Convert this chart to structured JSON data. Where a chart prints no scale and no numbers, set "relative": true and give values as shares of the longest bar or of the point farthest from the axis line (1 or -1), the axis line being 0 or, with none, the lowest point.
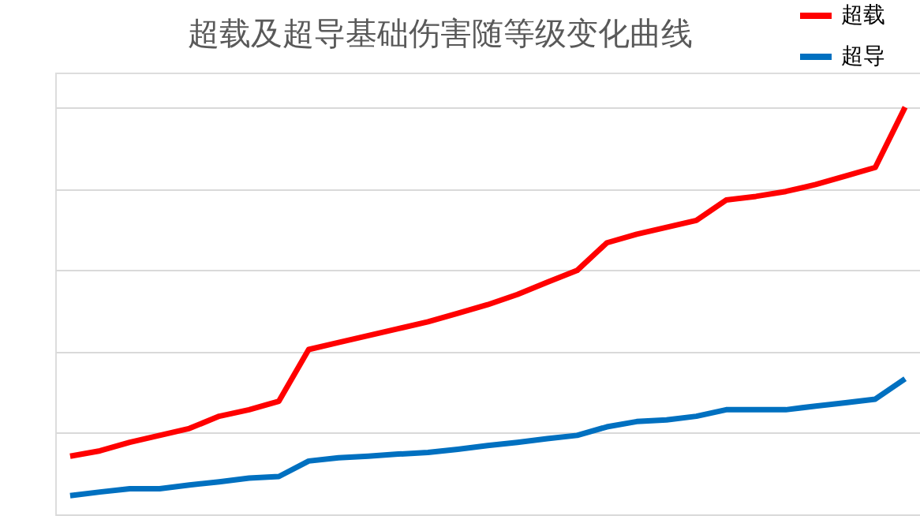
{
  "chart_data": {
    "type": "line",
    "title": "超载及超导基础伤害随等级变化曲线",
    "relative": true,
    "grid": "y",
    "legend": "top right",
    "marker": "none",
    "line_style": "solid",
    "tick_labels": false,
    "categories": [
      null,
      null,
      null,
      null,
      null,
      null,
      null,
      null,
      null,
      null,
      null,
      null,
      null,
      null,
      null,
      null,
      null,
      null,
      null,
      null,
      null,
      null,
      null,
      null,
      null,
      null,
      null,
      null,
      null
    ],
    "series": [
      {
        "name": "超载",
        "color": "#ff0000",
        "values": [
          0.143,
          0.156,
          0.177,
          0.194,
          0.211,
          0.241,
          0.257,
          0.278,
          0.405,
          0.422,
          0.439,
          0.456,
          0.473,
          0.494,
          0.515,
          0.54,
          0.57,
          0.599,
          0.667,
          0.688,
          0.705,
          0.722,
          0.772,
          0.781,
          0.793,
          0.81,
          0.831,
          0.852,
          1
        ]
      },
      {
        "name": "超导",
        "color": "#0070c0",
        "values": [
          0.046,
          0.055,
          0.063,
          0.063,
          0.072,
          0.08,
          0.089,
          0.093,
          0.131,
          0.139,
          0.143,
          0.148,
          0.152,
          0.16,
          0.169,
          0.177,
          0.186,
          0.194,
          0.215,
          0.228,
          0.232,
          0.241,
          0.257,
          0.257,
          0.257,
          0.266,
          0.274,
          0.283,
          0.333
        ]
      }
    ]
  }
}
